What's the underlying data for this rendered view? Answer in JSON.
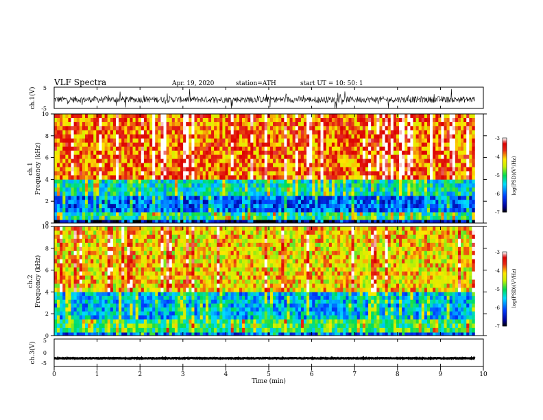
{
  "header": {
    "title": "VLF Spectra",
    "date": "Apr. 19, 2020",
    "station": "station=ATH",
    "start": "start UT = 10: 50: 1"
  },
  "chart_data": {
    "type": "heatmap",
    "x": {
      "label": "Time (min)",
      "range": [
        0,
        10
      ],
      "ticks": [
        "0",
        "1",
        "2",
        "3",
        "4",
        "5",
        "6",
        "7",
        "8",
        "9",
        "10"
      ],
      "data_end_min": 9.8
    },
    "panels": [
      {
        "id": "ch1-waveform",
        "type": "line",
        "ylabel": "ch.1(V)",
        "ylim": [
          -5,
          5
        ],
        "yticks": [
          "5",
          "-5"
        ],
        "baseline": -0.8,
        "noise_amplitude": 1.5
      },
      {
        "id": "ch1-spectrogram",
        "type": "heatmap",
        "ylabel_line1": "ch.1",
        "ylabel_line2": "Frequency (kHz)",
        "ylim": [
          0,
          10
        ],
        "yticks": [
          "0",
          "2",
          "4",
          "6",
          "8",
          "10"
        ],
        "colorbar": {
          "label": "log(PSD)(V²/Hz)",
          "ticks": [
            "-3",
            "-4",
            "-5",
            "-6",
            "-7"
          ],
          "range": [
            -7,
            -3
          ]
        },
        "bands": [
          {
            "from_khz": 0,
            "to_khz": 0.3,
            "log_psd": -6.8
          },
          {
            "from_khz": 0.3,
            "to_khz": 1.0,
            "log_psd": -5.2
          },
          {
            "from_khz": 1.0,
            "to_khz": 2.5,
            "log_psd": -6.0
          },
          {
            "from_khz": 2.5,
            "to_khz": 4.0,
            "log_psd": -5.3
          },
          {
            "from_khz": 4.0,
            "to_khz": 10.0,
            "log_psd": -3.8
          }
        ]
      },
      {
        "id": "ch2-spectrogram",
        "type": "heatmap",
        "ylabel_line1": "ch.2",
        "ylabel_line2": "Frequency (kHz)",
        "ylim": [
          0,
          10
        ],
        "yticks": [
          "0",
          "2",
          "4",
          "6",
          "8",
          "10"
        ],
        "colorbar": {
          "label": "log(PSD)(V²/Hz)",
          "ticks": [
            "-3",
            "-4",
            "-5",
            "-6",
            "-7"
          ],
          "range": [
            -7,
            -3
          ]
        },
        "bands": [
          {
            "from_khz": 0,
            "to_khz": 0.3,
            "log_psd": -6.0
          },
          {
            "from_khz": 0.3,
            "to_khz": 1.5,
            "log_psd": -5.0
          },
          {
            "from_khz": 1.5,
            "to_khz": 4.0,
            "log_psd": -5.6
          },
          {
            "from_khz": 4.0,
            "to_khz": 10.0,
            "log_psd": -4.2
          }
        ]
      },
      {
        "id": "ch3-waveform",
        "type": "line",
        "ylabel": "ch.3(V)",
        "ylim": [
          -5,
          5
        ],
        "yticks": [
          "5",
          "0",
          "-5"
        ],
        "baseline": -2.0,
        "noise_amplitude": 0.15
      }
    ]
  }
}
